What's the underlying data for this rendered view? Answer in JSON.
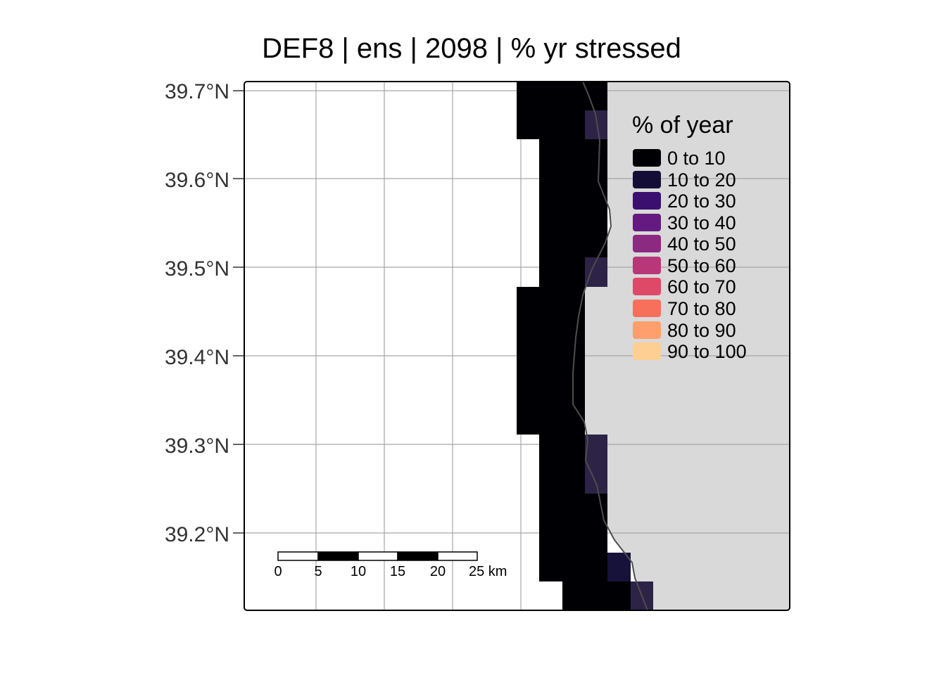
{
  "title": "DEF8 | ens | 2098 | % yr stressed",
  "y_axis": {
    "tick_labels": [
      "39.7°N",
      "39.6°N",
      "39.5°N",
      "39.4°N",
      "39.3°N",
      "39.2°N"
    ],
    "tick_values": [
      39.7,
      39.6,
      39.5,
      39.4,
      39.3,
      39.2
    ]
  },
  "legend": {
    "title": "% of year",
    "placement": "top-right",
    "items": [
      {
        "label": "0 to 10",
        "color": "#000004"
      },
      {
        "label": "10 to 20",
        "color": "#140E36"
      },
      {
        "label": "20 to 30",
        "color": "#3B0F70"
      },
      {
        "label": "30 to 40",
        "color": "#641A80"
      },
      {
        "label": "40 to 50",
        "color": "#8C2981"
      },
      {
        "label": "50 to 60",
        "color": "#B73779"
      },
      {
        "label": "60 to 70",
        "color": "#DE4968"
      },
      {
        "label": "70 to 80",
        "color": "#F7705C"
      },
      {
        "label": "80 to 90",
        "color": "#FE9F6D"
      },
      {
        "label": "90 to 100",
        "color": "#FECF92"
      }
    ]
  },
  "scale_bar": {
    "labels": [
      "0",
      "5",
      "10",
      "15",
      "20",
      "25 km"
    ]
  },
  "colors": {
    "land": "#D9D9D9",
    "sea": "#FFFFFF",
    "grid": "#A6A6A6",
    "coastline": "#4D4D4D"
  }
}
